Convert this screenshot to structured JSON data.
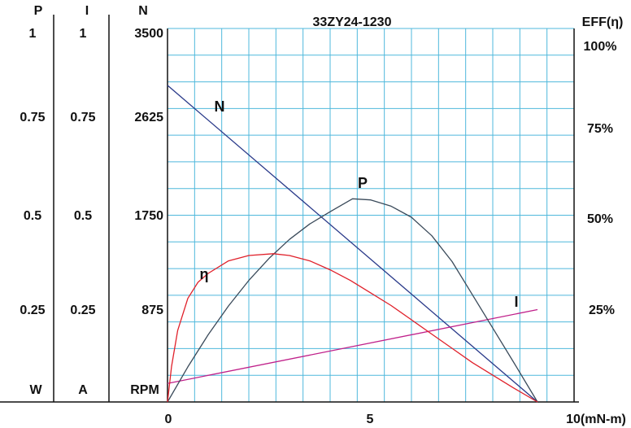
{
  "chart_data": {
    "type": "line",
    "title": "33ZY24-1230",
    "x": {
      "ticks": [
        "0",
        "5",
        "10(mN-m)"
      ],
      "range": [
        0,
        10
      ]
    },
    "left_axes": [
      {
        "header": "P",
        "unit": "W",
        "ticks": [
          "1",
          "0.75",
          "0.5",
          "0.25"
        ],
        "range": [
          0,
          1
        ]
      },
      {
        "header": "I",
        "unit": "A",
        "ticks": [
          "1",
          "0.75",
          "0.5",
          "0.25"
        ],
        "range": [
          0,
          1
        ]
      },
      {
        "header": "N",
        "unit": "RPM",
        "ticks": [
          "3500",
          "2625",
          "1750",
          "875"
        ],
        "range": [
          0,
          3500
        ]
      }
    ],
    "right_axis": {
      "header": "EFF(η)",
      "ticks": [
        "100%",
        "75%",
        "50%",
        "25%"
      ],
      "range": [
        0,
        100
      ]
    },
    "grid": true,
    "series": [
      {
        "name": "N",
        "axis": "N",
        "color": "#2a3a8a",
        "x": [
          0,
          9.1
        ],
        "y": [
          3000,
          0
        ]
      },
      {
        "name": "I",
        "axis": "I",
        "color": "#c0208a",
        "x": [
          0,
          9.1
        ],
        "y": [
          0.05,
          0.25
        ]
      },
      {
        "name": "P",
        "axis": "P",
        "color": "#3a4a5a",
        "x": [
          0,
          0.5,
          1,
          1.5,
          2,
          2.5,
          3,
          3.5,
          4,
          4.55,
          5,
          5.5,
          6,
          6.5,
          7,
          7.5,
          8,
          8.5,
          9.1
        ],
        "y": [
          0,
          0.095,
          0.182,
          0.26,
          0.329,
          0.389,
          0.44,
          0.482,
          0.515,
          0.55,
          0.547,
          0.53,
          0.5,
          0.45,
          0.38,
          0.29,
          0.2,
          0.11,
          0
        ]
      },
      {
        "name": "η",
        "axis": "EFF",
        "color": "#e0202a",
        "x": [
          0,
          0.1,
          0.25,
          0.5,
          0.75,
          1,
          1.5,
          2,
          2.6,
          3,
          3.5,
          4,
          4.5,
          5,
          5.5,
          6,
          6.5,
          7,
          7.5,
          8,
          8.5,
          9.1
        ],
        "y": [
          0,
          10,
          20,
          29,
          33.5,
          36,
          39.5,
          41,
          41.5,
          41,
          39.5,
          37,
          34,
          30.5,
          27,
          23,
          19,
          15,
          11,
          7.5,
          4,
          0
        ]
      }
    ]
  }
}
